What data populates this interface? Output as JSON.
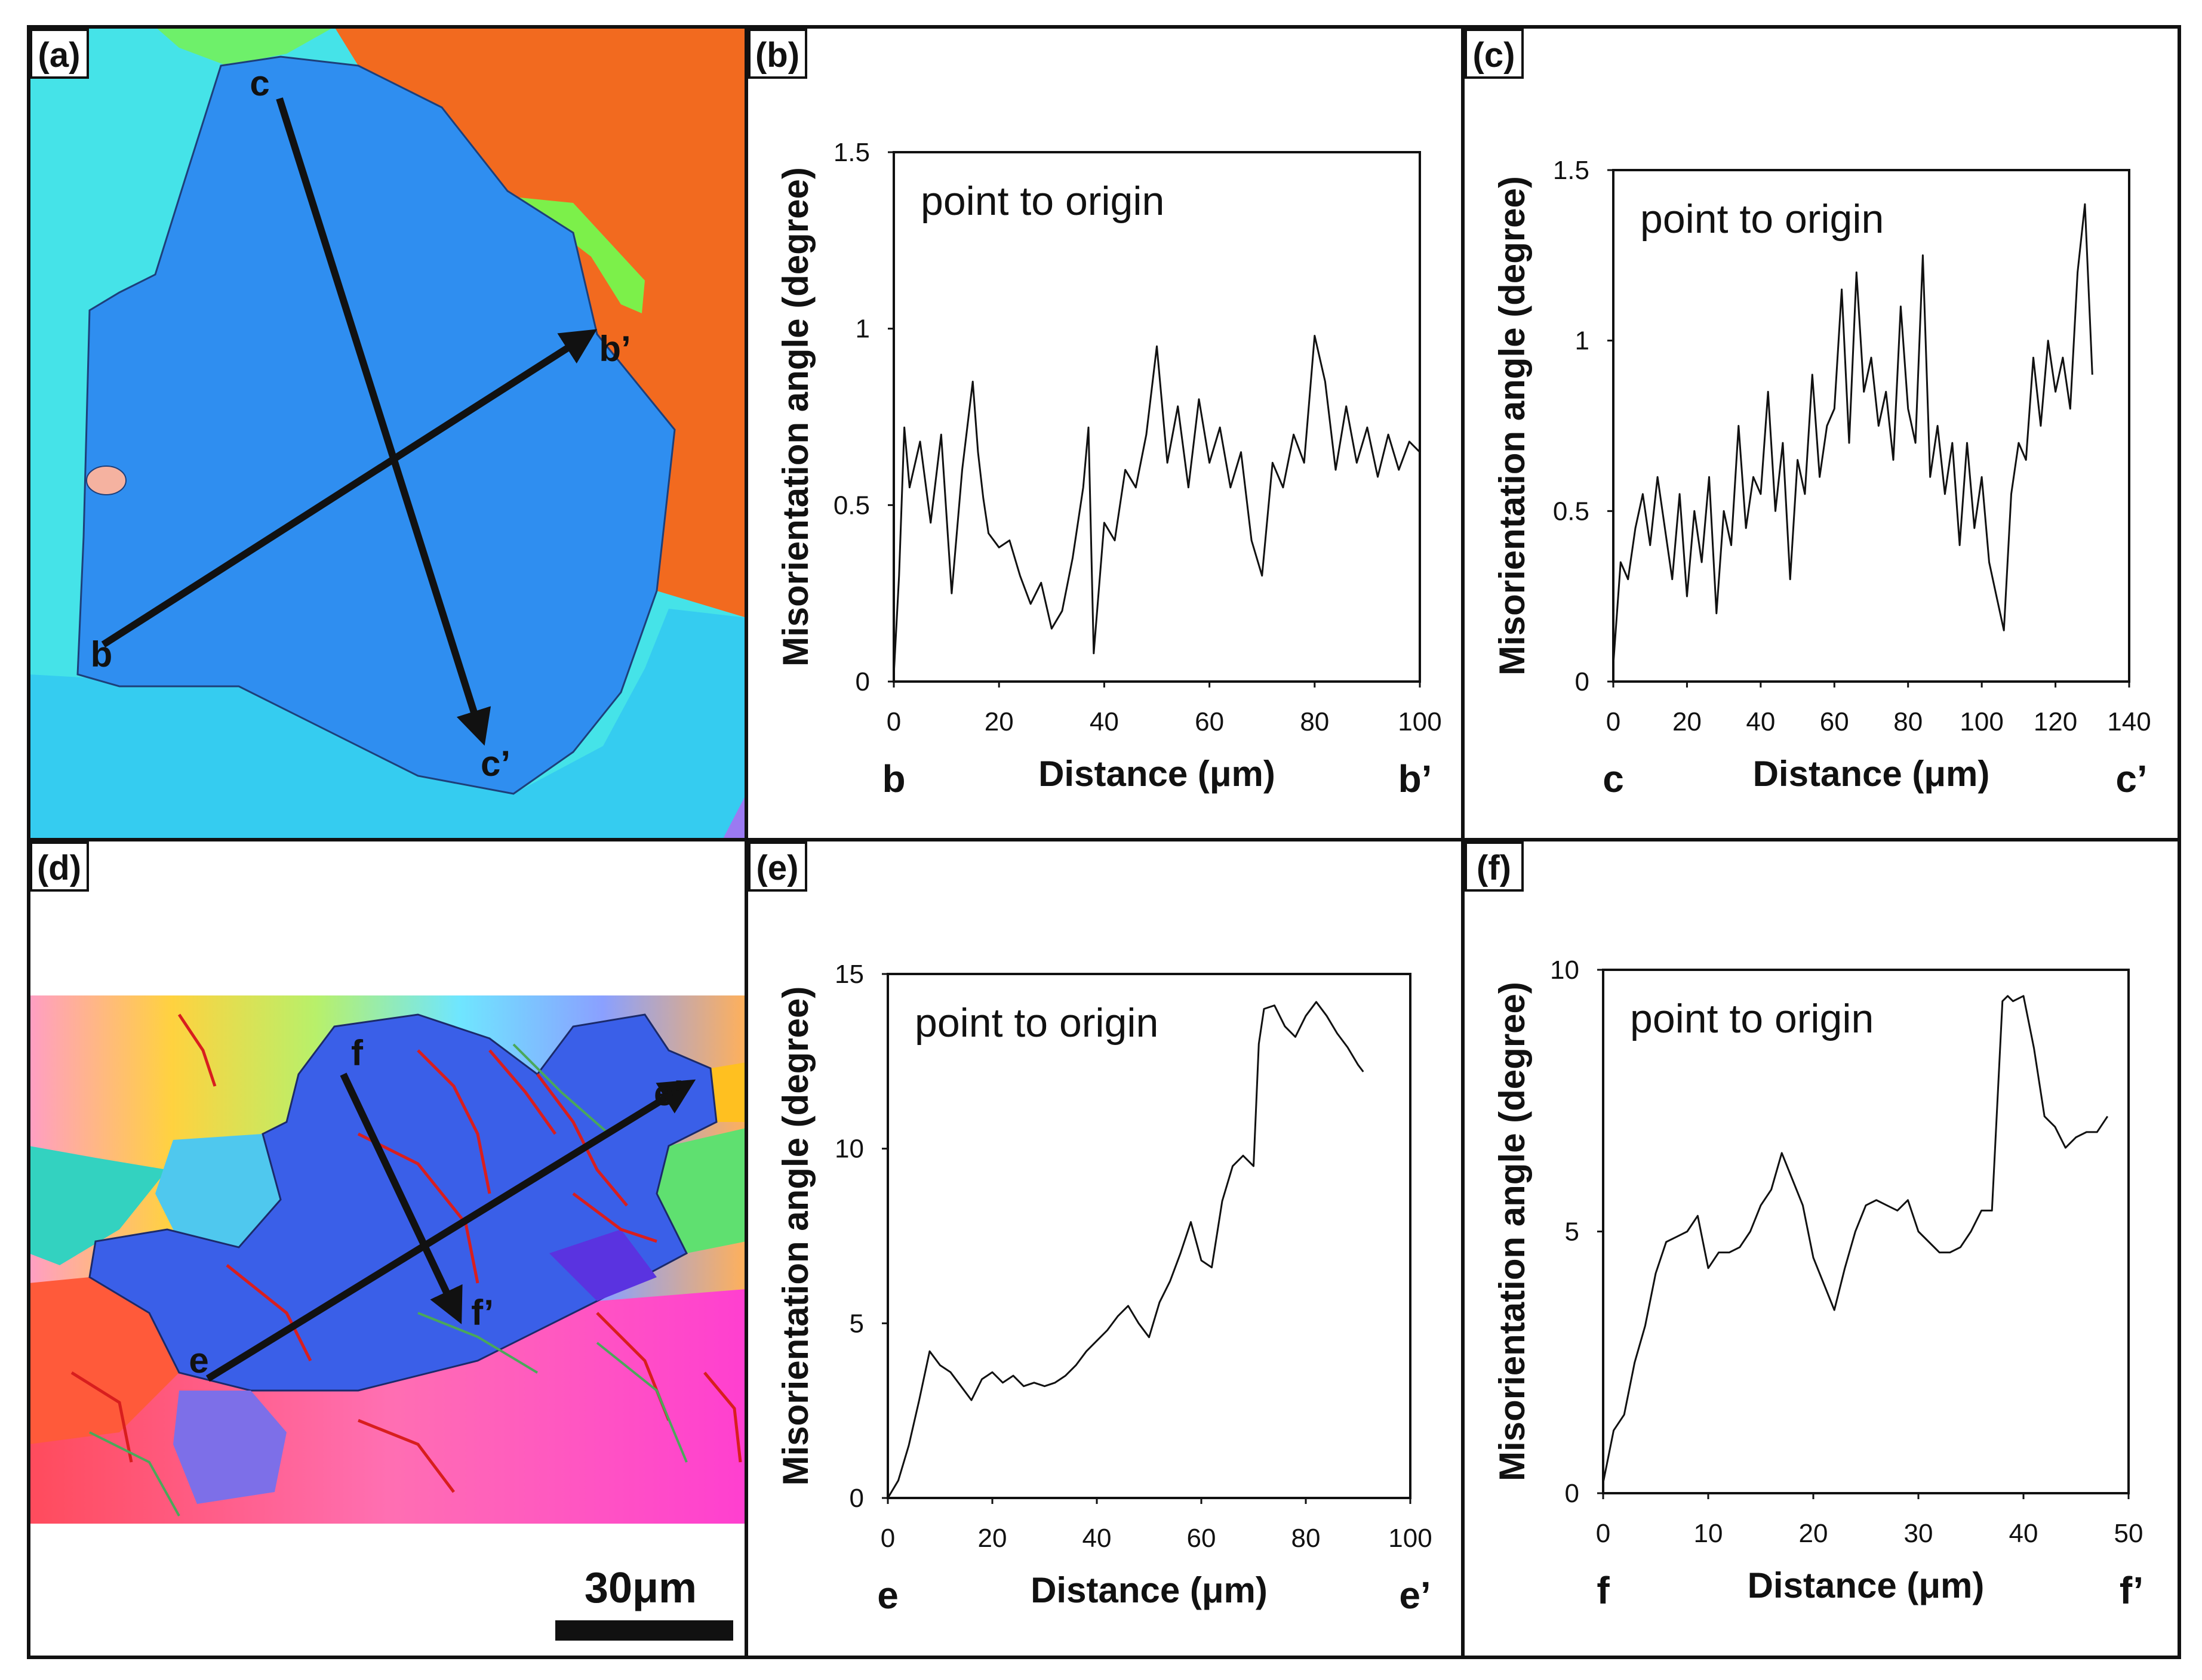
{
  "panels": {
    "a": {
      "label": "(a)",
      "points": {
        "b": "b",
        "bp": "b’",
        "c": "c",
        "cp": "c’"
      }
    },
    "d": {
      "label": "(d)",
      "points": {
        "e": "e",
        "ep": "e’",
        "f": "f",
        "fp": "f’"
      },
      "scale_bar": "30μm"
    }
  },
  "colors": {
    "grain_blue": "#2f8ef0",
    "grain_orange": "#f26a1f",
    "grain_cyan": "#3fe0e6",
    "boundary_red": "#d81e1e",
    "boundary_green": "#4aa85a"
  },
  "chart_data": [
    {
      "panel": "(b)",
      "type": "line",
      "annotation": "point to origin",
      "xlabel": "Distance (μm)",
      "ylabel": "Misorientation angle (degree)",
      "start_label": "b",
      "end_label": "b’",
      "xlim": [
        0,
        100
      ],
      "ylim": [
        0,
        1.5
      ],
      "xticks": [
        0,
        20,
        40,
        60,
        80,
        100
      ],
      "yticks": [
        0,
        0.5,
        1,
        1.5
      ],
      "ytick_labels": [
        "0",
        "0.5",
        "1",
        "1.5"
      ],
      "x": [
        0,
        1,
        2,
        3,
        5,
        7,
        9,
        11,
        13,
        15,
        16,
        17,
        18,
        20,
        22,
        24,
        26,
        28,
        30,
        32,
        34,
        36,
        37,
        38,
        40,
        42,
        44,
        46,
        48,
        50,
        52,
        54,
        56,
        58,
        60,
        62,
        64,
        66,
        68,
        70,
        72,
        74,
        76,
        78,
        80,
        82,
        84,
        86,
        88,
        90,
        92,
        94,
        96,
        98,
        100
      ],
      "y": [
        0.02,
        0.3,
        0.72,
        0.55,
        0.68,
        0.45,
        0.7,
        0.25,
        0.6,
        0.85,
        0.65,
        0.52,
        0.42,
        0.38,
        0.4,
        0.3,
        0.22,
        0.28,
        0.15,
        0.2,
        0.35,
        0.55,
        0.72,
        0.08,
        0.45,
        0.4,
        0.6,
        0.55,
        0.7,
        0.95,
        0.62,
        0.78,
        0.55,
        0.8,
        0.62,
        0.72,
        0.55,
        0.65,
        0.4,
        0.3,
        0.62,
        0.55,
        0.7,
        0.62,
        0.98,
        0.85,
        0.6,
        0.78,
        0.62,
        0.72,
        0.58,
        0.7,
        0.6,
        0.68,
        0.65
      ]
    },
    {
      "panel": "(c)",
      "type": "line",
      "annotation": "point to origin",
      "xlabel": "Distance (μm)",
      "ylabel": "Misorientation angle (degree)",
      "start_label": "c",
      "end_label": "c’",
      "xlim": [
        0,
        140
      ],
      "ylim": [
        0,
        1.5
      ],
      "xticks": [
        0,
        20,
        40,
        60,
        80,
        100,
        120,
        140
      ],
      "yticks": [
        0,
        0.5,
        1,
        1.5
      ],
      "ytick_labels": [
        "0",
        "0.5",
        "1",
        "1.5"
      ],
      "x": [
        0,
        2,
        4,
        6,
        8,
        10,
        12,
        14,
        16,
        18,
        20,
        22,
        24,
        26,
        28,
        30,
        32,
        34,
        36,
        38,
        40,
        42,
        44,
        46,
        48,
        50,
        52,
        54,
        56,
        58,
        60,
        62,
        64,
        66,
        68,
        70,
        72,
        74,
        76,
        78,
        80,
        82,
        84,
        86,
        88,
        90,
        92,
        94,
        96,
        98,
        100,
        102,
        104,
        106,
        108,
        110,
        112,
        114,
        116,
        118,
        120,
        122,
        124,
        126,
        128,
        130
      ],
      "y": [
        0.05,
        0.35,
        0.3,
        0.45,
        0.55,
        0.4,
        0.6,
        0.45,
        0.3,
        0.55,
        0.25,
        0.5,
        0.35,
        0.6,
        0.2,
        0.5,
        0.4,
        0.75,
        0.45,
        0.6,
        0.55,
        0.85,
        0.5,
        0.7,
        0.3,
        0.65,
        0.55,
        0.9,
        0.6,
        0.75,
        0.8,
        1.15,
        0.7,
        1.2,
        0.85,
        0.95,
        0.75,
        0.85,
        0.65,
        1.1,
        0.8,
        0.7,
        1.25,
        0.6,
        0.75,
        0.55,
        0.7,
        0.4,
        0.7,
        0.45,
        0.6,
        0.35,
        0.25,
        0.15,
        0.55,
        0.7,
        0.65,
        0.95,
        0.75,
        1.0,
        0.85,
        0.95,
        0.8,
        1.2,
        1.4,
        0.9
      ]
    },
    {
      "panel": "(e)",
      "type": "line",
      "annotation": "point to origin",
      "xlabel": "Distance (μm)",
      "ylabel": "Misorientation angle (degree)",
      "start_label": "e",
      "end_label": "e’",
      "xlim": [
        0,
        100
      ],
      "ylim": [
        0,
        15
      ],
      "xticks": [
        0,
        20,
        40,
        60,
        80,
        100
      ],
      "yticks": [
        0,
        5,
        10,
        15
      ],
      "ytick_labels": [
        "0",
        "5",
        "10",
        "15"
      ],
      "x": [
        0,
        2,
        4,
        6,
        8,
        10,
        12,
        14,
        16,
        18,
        20,
        22,
        24,
        26,
        28,
        30,
        32,
        34,
        36,
        38,
        40,
        42,
        44,
        46,
        48,
        50,
        52,
        54,
        56,
        58,
        60,
        62,
        64,
        66,
        68,
        70,
        71,
        72,
        74,
        76,
        78,
        80,
        82,
        84,
        86,
        88,
        90,
        91
      ],
      "y": [
        0,
        0.5,
        1.5,
        2.8,
        4.2,
        3.8,
        3.6,
        3.2,
        2.8,
        3.4,
        3.6,
        3.3,
        3.5,
        3.2,
        3.3,
        3.2,
        3.3,
        3.5,
        3.8,
        4.2,
        4.5,
        4.8,
        5.2,
        5.5,
        5.0,
        4.6,
        5.6,
        6.2,
        7.0,
        7.9,
        6.8,
        6.6,
        8.5,
        9.5,
        9.8,
        9.5,
        13.0,
        14.0,
        14.1,
        13.5,
        13.2,
        13.8,
        14.2,
        13.8,
        13.3,
        12.9,
        12.4,
        12.2
      ]
    },
    {
      "panel": "(f)",
      "type": "line",
      "annotation": "point to origin",
      "xlabel": "Distance (μm)",
      "ylabel": "Misorientation angle (degree)",
      "start_label": "f",
      "end_label": "f’",
      "xlim": [
        0,
        50
      ],
      "ylim": [
        0,
        10
      ],
      "xticks": [
        0,
        10,
        20,
        30,
        40,
        50
      ],
      "yticks": [
        0,
        5,
        10
      ],
      "ytick_labels": [
        "0",
        "5",
        "10"
      ],
      "x": [
        0,
        1,
        2,
        3,
        4,
        5,
        6,
        7,
        8,
        9,
        10,
        11,
        12,
        13,
        14,
        15,
        16,
        17,
        18,
        19,
        20,
        21,
        22,
        23,
        24,
        25,
        26,
        27,
        28,
        29,
        30,
        31,
        32,
        33,
        34,
        35,
        36,
        37,
        38,
        38.5,
        39,
        40,
        41,
        42,
        43,
        44,
        45,
        46,
        47,
        48
      ],
      "y": [
        0.2,
        1.2,
        1.5,
        2.5,
        3.2,
        4.2,
        4.8,
        4.9,
        5.0,
        5.3,
        4.3,
        4.6,
        4.6,
        4.7,
        5.0,
        5.5,
        5.8,
        6.5,
        6.0,
        5.5,
        4.5,
        4.0,
        3.5,
        4.3,
        5.0,
        5.5,
        5.6,
        5.5,
        5.4,
        5.6,
        5.0,
        4.8,
        4.6,
        4.6,
        4.7,
        5.0,
        5.4,
        5.4,
        9.4,
        9.5,
        9.4,
        9.5,
        8.5,
        7.2,
        7.0,
        6.6,
        6.8,
        6.9,
        6.9,
        7.2
      ]
    }
  ]
}
